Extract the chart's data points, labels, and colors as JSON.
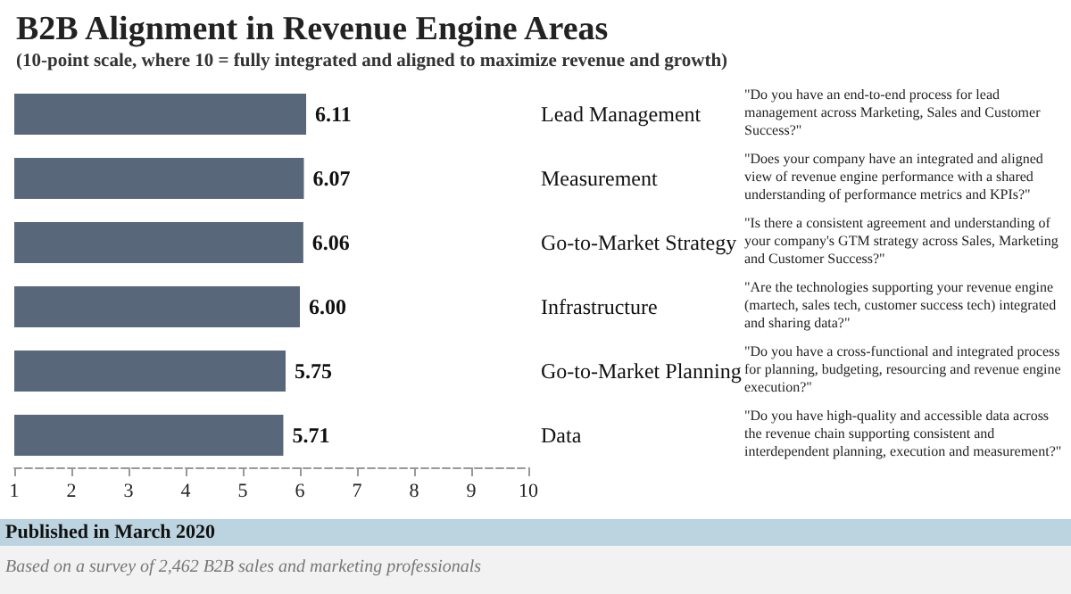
{
  "chart_data": {
    "type": "bar",
    "orientation": "horizontal",
    "title": "B2B Alignment in Revenue Engine Areas",
    "subtitle": "(10-point scale, where 10 = fully integrated and aligned to maximize revenue and growth)",
    "categories": [
      "Lead Management",
      "Measurement",
      "Go-to-Market Strategy",
      "Infrastructure",
      "Go-to-Market Planning",
      "Data"
    ],
    "values": [
      6.11,
      6.07,
      6.06,
      6.0,
      5.75,
      5.71
    ],
    "value_labels": [
      "6.11",
      "6.07",
      "6.06",
      "6.00",
      "5.75",
      "5.71"
    ],
    "color": "#58687a",
    "xlim": [
      1,
      10
    ],
    "xticks": [
      1,
      2,
      3,
      4,
      5,
      6,
      7,
      8,
      9,
      10
    ],
    "grid": false,
    "annotations": [
      "\"Do you have an end-to-end process for lead management across Marketing, Sales and Customer Success?\"",
      "\"Does your company have an integrated and aligned view of revenue engine performance with a shared understanding of performance metrics and KPIs?\"",
      "\"Is there a consistent agreement and understanding of your company's GTM strategy across Sales, Marketing and Customer Success?\"",
      "\"Are the technologies supporting your revenue engine (martech, sales tech, customer success tech) integrated and sharing data?\"",
      "\"Do you have a cross-functional and integrated process for planning, budgeting, resourcing and revenue engine execution?\"",
      "\"Do you have high-quality and accessible data across the revenue chain supporting consistent and interdependent planning, execution and measurement?\"",
      "Published in March 2020",
      "Based on a survey of 2,462 B2B sales and marketing professionals"
    ]
  }
}
